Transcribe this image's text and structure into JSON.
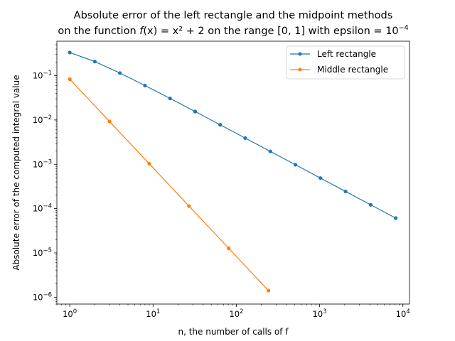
{
  "chart_data": {
    "type": "line",
    "title_line1": "Absolute error of the left rectangle and the midpoint methods",
    "title_line2_prefix": "on the function ",
    "title_math_f": "f",
    "title_math_rest": "(x) = x² + 2",
    "title_line2_mid": " on the range [0, 1] with epsilon = 10",
    "title_line2_exp": "−4",
    "xlabel": "n, the number of calls of f",
    "ylabel": "Absolute error of the computed integral value",
    "x_scale": "log",
    "y_scale": "log",
    "xlim": [
      0.7,
      12000
    ],
    "ylim": [
      7e-07,
      0.6
    ],
    "x_ticks": [
      {
        "value": 1,
        "base": "10",
        "exp": "0"
      },
      {
        "value": 10,
        "base": "10",
        "exp": "1"
      },
      {
        "value": 100,
        "base": "10",
        "exp": "2"
      },
      {
        "value": 1000,
        "base": "10",
        "exp": "3"
      },
      {
        "value": 10000,
        "base": "10",
        "exp": "4"
      }
    ],
    "y_ticks": [
      {
        "value": 1e-06,
        "base": "10",
        "exp": "−6"
      },
      {
        "value": 1e-05,
        "base": "10",
        "exp": "−5"
      },
      {
        "value": 0.0001,
        "base": "10",
        "exp": "−4"
      },
      {
        "value": 0.001,
        "base": "10",
        "exp": "−3"
      },
      {
        "value": 0.01,
        "base": "10",
        "exp": "−2"
      },
      {
        "value": 0.1,
        "base": "10",
        "exp": "−1"
      }
    ],
    "legend_position": "top-right",
    "series": [
      {
        "name": "Left rectangle",
        "color": "#1f77b4",
        "x": [
          1,
          2,
          4,
          8,
          16,
          32,
          64,
          128,
          256,
          512,
          1024,
          2048,
          4096,
          8192
        ],
        "y": [
          0.3333,
          0.2083,
          0.1146,
          0.06,
          0.0307,
          0.0155,
          0.0078,
          0.0039,
          0.00195,
          0.000977,
          0.000488,
          0.000244,
          0.000122,
          6.1e-05
        ]
      },
      {
        "name": "Middle rectangle",
        "color": "#ff7f0e",
        "x": [
          1,
          3,
          9,
          27,
          81,
          243
        ],
        "y": [
          0.0833,
          0.00926,
          0.00103,
          0.000114,
          1.27e-05,
          1.41e-06
        ]
      }
    ]
  }
}
